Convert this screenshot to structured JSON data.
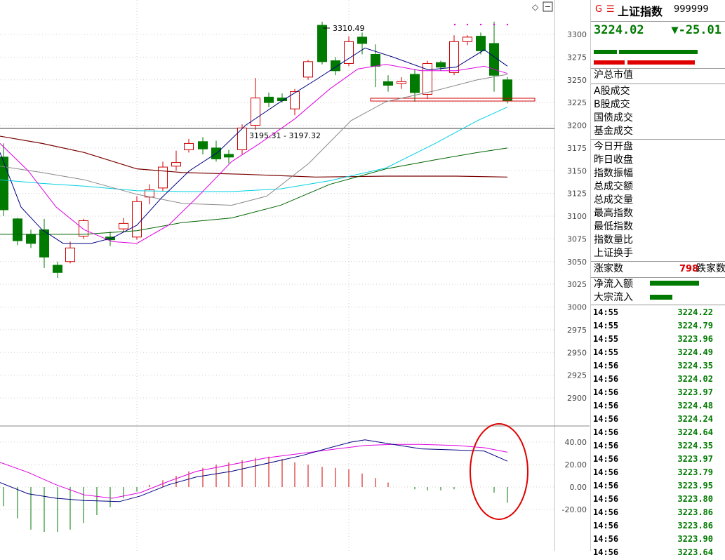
{
  "chart": {
    "high_label": "3310.49",
    "ref_label": "3195.31 - 3197.32",
    "price_ticks": [
      "3300",
      "3275",
      "3250",
      "3225",
      "3200",
      "3175",
      "3150",
      "3125",
      "3100",
      "3075",
      "3050",
      "3025",
      "3000",
      "2975",
      "2950",
      "2925",
      "2900"
    ],
    "macd_ticks": [
      "40.00",
      "20.00",
      "0.00",
      "-20.00"
    ],
    "colors": {
      "up": "#d00000",
      "down": "#007a00",
      "ma5": "#000080",
      "ma10": "#e000e0",
      "ma20": "#888888",
      "ma30": "#00d0e0",
      "ma60": "#006400",
      "ma120": "#7a0000"
    }
  },
  "panel": {
    "g_mark": "G",
    "menu_icon": "three-lines-icon",
    "title": "上证指数",
    "code": "999999",
    "price": "3224.02",
    "change": "▼-25.01",
    "market_value_label": "沪总市值",
    "volume_labels": [
      "A股成交",
      "B股成交",
      "国债成交",
      "基金成交"
    ],
    "stat_labels": [
      "今日开盘",
      "昨日收盘",
      "指数振幅",
      "总成交额",
      "总成交量",
      "最高指数",
      "最低指数",
      "指数量比",
      "上证换手"
    ],
    "up_label": "涨家数",
    "up_count": "798",
    "down_label": "跌家数",
    "flow_labels": [
      "净流入额",
      "大宗流入"
    ],
    "ticks": [
      {
        "time": "14:55",
        "price": "3224.22"
      },
      {
        "time": "14:55",
        "price": "3224.79"
      },
      {
        "time": "14:55",
        "price": "3223.96"
      },
      {
        "time": "14:55",
        "price": "3224.49"
      },
      {
        "time": "14:56",
        "price": "3224.35"
      },
      {
        "time": "14:56",
        "price": "3224.02"
      },
      {
        "time": "14:56",
        "price": "3223.97"
      },
      {
        "time": "14:56",
        "price": "3224.48"
      },
      {
        "time": "14:56",
        "price": "3224.24"
      },
      {
        "time": "14:56",
        "price": "3224.64"
      },
      {
        "time": "14:56",
        "price": "3224.35"
      },
      {
        "time": "14:56",
        "price": "3223.97"
      },
      {
        "time": "14:56",
        "price": "3223.79"
      },
      {
        "time": "14:56",
        "price": "3223.95"
      },
      {
        "time": "14:56",
        "price": "3223.80"
      },
      {
        "time": "14:56",
        "price": "3223.86"
      },
      {
        "time": "14:56",
        "price": "3223.86"
      },
      {
        "time": "14:56",
        "price": "3223.90"
      },
      {
        "time": "14:56",
        "price": "3223.64"
      }
    ]
  }
}
